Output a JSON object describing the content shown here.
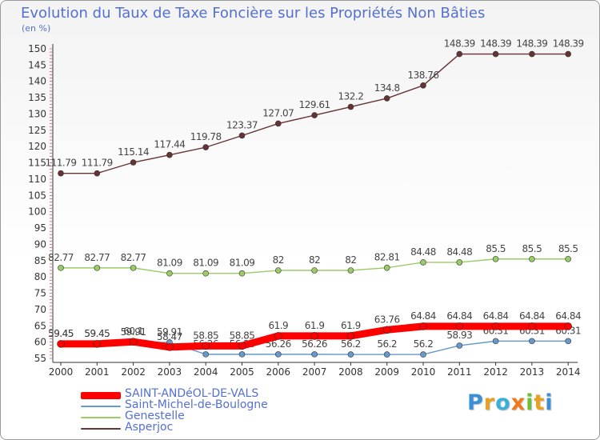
{
  "title": "Evolution du Taux de Taxe Foncière sur les Propriétés Non Bâties",
  "unit_label": "(en %)",
  "logo": {
    "letters": [
      "P",
      "r",
      "o",
      "x",
      "i",
      "t",
      "i"
    ],
    "colors": [
      "#3a8fd6",
      "#e9a01c",
      "#3ab0d8",
      "#f07a1a",
      "#6cbf3a",
      "#e9a01c",
      "#3a8fd6"
    ]
  },
  "chart_data": {
    "type": "line",
    "title": "Evolution du Taux de Taxe Foncière sur les Propriétés Non Bâties",
    "ylabel": "(en %)",
    "xlabel": "",
    "x": [
      2000,
      2001,
      2002,
      2003,
      2004,
      2005,
      2006,
      2007,
      2008,
      2009,
      2010,
      2011,
      2012,
      2013,
      2014
    ],
    "ylim": [
      55,
      150
    ],
    "yticks": [
      55,
      60,
      65,
      70,
      75,
      80,
      85,
      90,
      95,
      100,
      105,
      110,
      115,
      120,
      125,
      130,
      135,
      140,
      145,
      150
    ],
    "grid": false,
    "legend_position": "bottom-left",
    "series": [
      {
        "name": "SAINT-ANDéOL-DE-VALS",
        "color": "#ff0000",
        "emphasis": "thick",
        "values": [
          59.45,
          59.45,
          60.1,
          58.47,
          58.85,
          58.85,
          61.9,
          61.9,
          61.9,
          63.76,
          64.84,
          64.84,
          64.84,
          64.84,
          64.84
        ],
        "labels": [
          "59.45",
          "59.45",
          "60.1",
          "58.47",
          "58.85",
          "58.85",
          "61.9",
          "61.9",
          "61.9",
          "63.76",
          "64.84",
          "64.84",
          "64.84",
          "64.84",
          "64.84"
        ]
      },
      {
        "name": "Saint-Michel-de-Boulogne",
        "color": "#6699cc",
        "emphasis": "thin",
        "values": [
          59.45,
          59.45,
          59.91,
          59.91,
          56.26,
          56.26,
          56.26,
          56.26,
          56.2,
          56.2,
          56.2,
          58.93,
          60.31,
          60.31,
          60.31
        ],
        "labels": [
          "59.45",
          "59.45",
          "59.91",
          "59.91",
          "56.26",
          "56.26",
          "56.26",
          "56.26",
          "56.2",
          "56.2",
          "56.2",
          "58.93",
          "60.31",
          "60.31",
          "60.31"
        ]
      },
      {
        "name": "Genestelle",
        "color": "#99cc66",
        "emphasis": "thin",
        "values": [
          82.77,
          82.77,
          82.77,
          81.09,
          81.09,
          81.09,
          82,
          82,
          82,
          82.81,
          84.48,
          84.48,
          85.5,
          85.5,
          85.5
        ],
        "labels": [
          "82.77",
          "82.77",
          "82.77",
          "81.09",
          "81.09",
          "81.09",
          "82",
          "82",
          "82",
          "82.81",
          "84.48",
          "84.48",
          "85.5",
          "85.5",
          "85.5"
        ]
      },
      {
        "name": "Asperjoc",
        "color": "#663333",
        "emphasis": "thin",
        "values": [
          111.79,
          111.79,
          115.14,
          117.44,
          119.78,
          123.37,
          127.07,
          129.61,
          132.2,
          134.8,
          138.76,
          148.39,
          148.39,
          148.39,
          148.39
        ],
        "labels": [
          "111.79",
          "111.79",
          "115.14",
          "117.44",
          "119.78",
          "123.37",
          "127.07",
          "129.61",
          "132.2",
          "134.8",
          "138.76",
          "148.39",
          "148.39",
          "148.39",
          "148.39"
        ]
      }
    ]
  }
}
